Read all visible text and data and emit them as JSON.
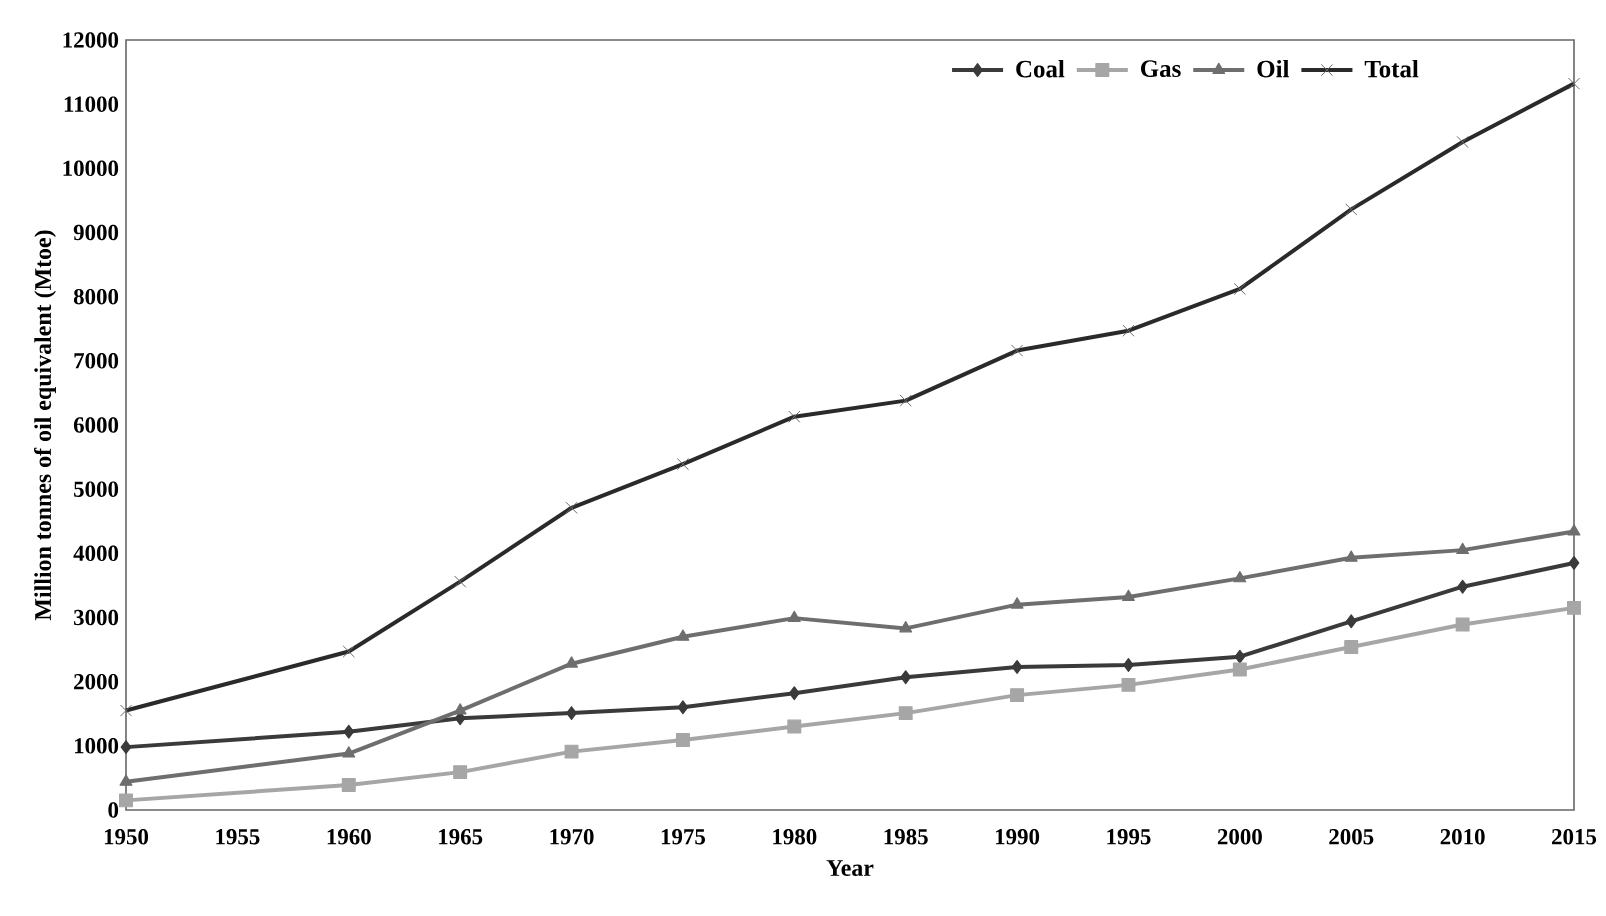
{
  "chart_data": {
    "type": "line",
    "xlabel": "Year",
    "ylabel": "Million tonnes of oil equivalent (Mtoe)",
    "x": [
      1950,
      1960,
      1965,
      1970,
      1975,
      1980,
      1985,
      1990,
      1995,
      2000,
      2005,
      2010,
      2015
    ],
    "series": [
      {
        "name": "Coal",
        "color": "#3a3a3a",
        "marker": "diamond",
        "values": [
          980,
          1220,
          1430,
          1510,
          1600,
          1820,
          2070,
          2230,
          2260,
          2390,
          2940,
          3480,
          3850
        ]
      },
      {
        "name": "Gas",
        "color": "#a6a6a6",
        "marker": "square",
        "values": [
          150,
          390,
          590,
          910,
          1090,
          1300,
          1510,
          1790,
          1950,
          2190,
          2540,
          2890,
          3150
        ]
      },
      {
        "name": "Oil",
        "color": "#6e6e6e",
        "marker": "triangle",
        "values": [
          440,
          880,
          1550,
          2280,
          2700,
          2990,
          2830,
          3200,
          3320,
          3610,
          3930,
          4050,
          4340
        ]
      },
      {
        "name": "Total",
        "color": "#2a2a2a",
        "marker": "cross",
        "values": [
          1550,
          2470,
          3560,
          4710,
          5390,
          6130,
          6380,
          7160,
          7470,
          8120,
          9360,
          10410,
          11320
        ]
      }
    ],
    "xlim": [
      1950,
      2015
    ],
    "xticks": [
      1950,
      1955,
      1960,
      1965,
      1970,
      1975,
      1980,
      1985,
      1990,
      1995,
      2000,
      2005,
      2010,
      2015
    ],
    "ylim": [
      0,
      12000
    ],
    "yticks": [
      0,
      1000,
      2000,
      3000,
      4000,
      5000,
      6000,
      7000,
      8000,
      9000,
      10000,
      11000,
      12000
    ],
    "grid": false,
    "legend": "top right",
    "line_style": "solid"
  }
}
